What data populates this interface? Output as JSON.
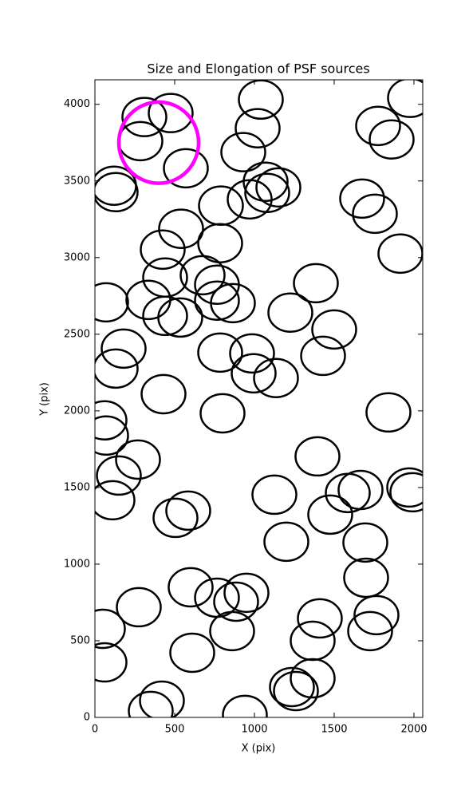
{
  "chart_data": {
    "type": "ellipse_scatter",
    "title": "Size and Elongation of PSF sources",
    "x_label": "X (pix)",
    "y_label": "Y (pix)",
    "xlim": [
      0,
      2055
    ],
    "ylim": [
      0,
      4160
    ],
    "xticks": [
      0,
      500,
      1000,
      1500,
      2000
    ],
    "yticks": [
      0,
      500,
      1000,
      1500,
      2000,
      2500,
      3000,
      3500,
      4000
    ],
    "series": [
      {
        "color": "#000000",
        "width": 275,
        "height": 250,
        "x": [
          310,
          475,
          1040,
          285,
          570,
          930,
          1020,
          1775,
          1860,
          1975,
          120,
          130,
          790,
          970,
          1070,
          1150,
          1080,
          1675,
          1755,
          1915,
          540,
          785,
          425,
          440,
          675,
          765,
          765,
          865,
          70,
          335,
          440,
          535,
          1225,
          1385,
          1500,
          1430,
          180,
          130,
          785,
          985,
          995,
          1135,
          430,
          800,
          1840,
          60,
          70,
          270,
          150,
          110,
          1395,
          1125,
          1585,
          1665,
          1475,
          1970,
          1990,
          585,
          505,
          1200,
          1695,
          1700,
          275,
          600,
          765,
          950,
          885,
          50,
          60,
          610,
          860,
          1410,
          1765,
          1725,
          1365,
          1365,
          1235,
          1260,
          420,
          350,
          940
        ],
        "y": [
          3917,
          3943,
          4031,
          3760,
          3583,
          3688,
          3844,
          3859,
          3771,
          4042,
          3469,
          3427,
          3339,
          3380,
          3495,
          3458,
          3422,
          3385,
          3286,
          3026,
          3188,
          3094,
          3052,
          2870,
          2885,
          2823,
          2719,
          2703,
          2708,
          2724,
          2620,
          2609,
          2641,
          2833,
          2531,
          2359,
          2406,
          2276,
          2380,
          2375,
          2245,
          2214,
          2109,
          1984,
          1990,
          1938,
          1839,
          1682,
          1578,
          1417,
          1703,
          1453,
          1464,
          1484,
          1323,
          1500,
          1469,
          1349,
          1302,
          1146,
          1141,
          911,
          719,
          849,
          781,
          813,
          755,
          578,
          359,
          422,
          563,
          646,
          667,
          563,
          500,
          255,
          198,
          172,
          109,
          42,
          16
        ]
      },
      {
        "color": "#ff00ff",
        "width": 500,
        "height": 530,
        "x": [
          400
        ],
        "y": [
          3750
        ]
      }
    ]
  }
}
